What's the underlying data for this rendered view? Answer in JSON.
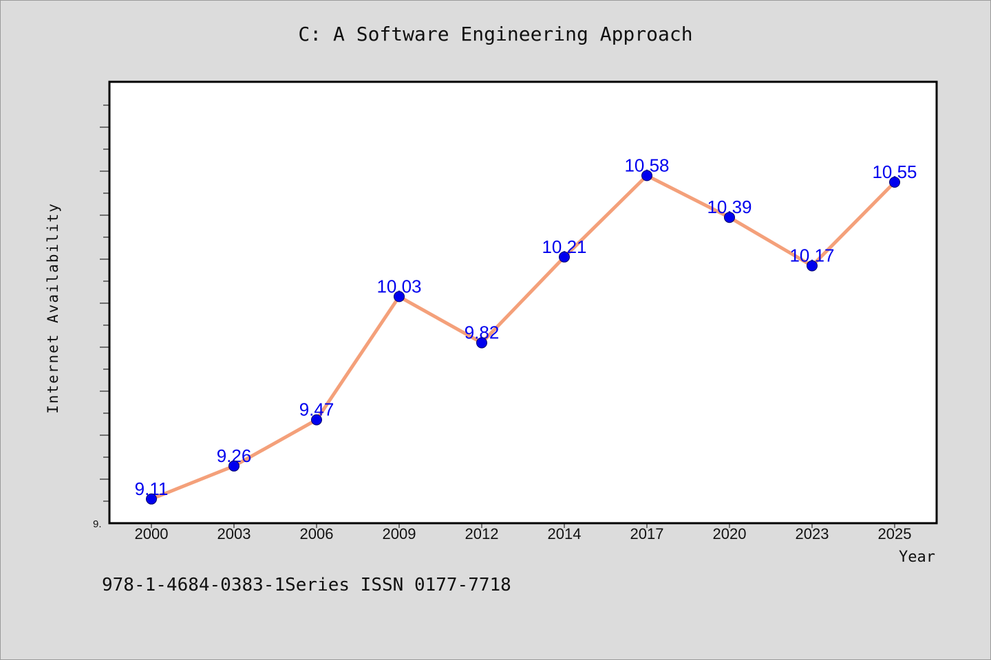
{
  "chart_data": {
    "type": "line",
    "title": "C: A Software Engineering Approach",
    "xlabel": "Year",
    "ylabel": "Internet Availability",
    "categories": [
      "2000",
      "2003",
      "2006",
      "2009",
      "2012",
      "2014",
      "2017",
      "2020",
      "2023",
      "2025"
    ],
    "values": [
      9.11,
      9.26,
      9.47,
      10.03,
      9.82,
      10.21,
      10.58,
      10.39,
      10.17,
      10.55
    ],
    "data_labels": [
      "9.11",
      "9.26",
      "9.47",
      "10.03",
      "9.82",
      "10.21",
      "10.58",
      "10.39",
      "10.17",
      "10.55"
    ],
    "ytick_label": "9.",
    "ylim": [
      9.0,
      11.0
    ],
    "grid": false,
    "legend": "none",
    "colors": {
      "line": "#f4a07a",
      "marker": "#0000ee",
      "label": "#0000ee",
      "background": "#dcdcdc",
      "plot_background": "#ffffff"
    }
  },
  "footer_note": "978-1-4684-0383-1Series ISSN 0177-7718"
}
